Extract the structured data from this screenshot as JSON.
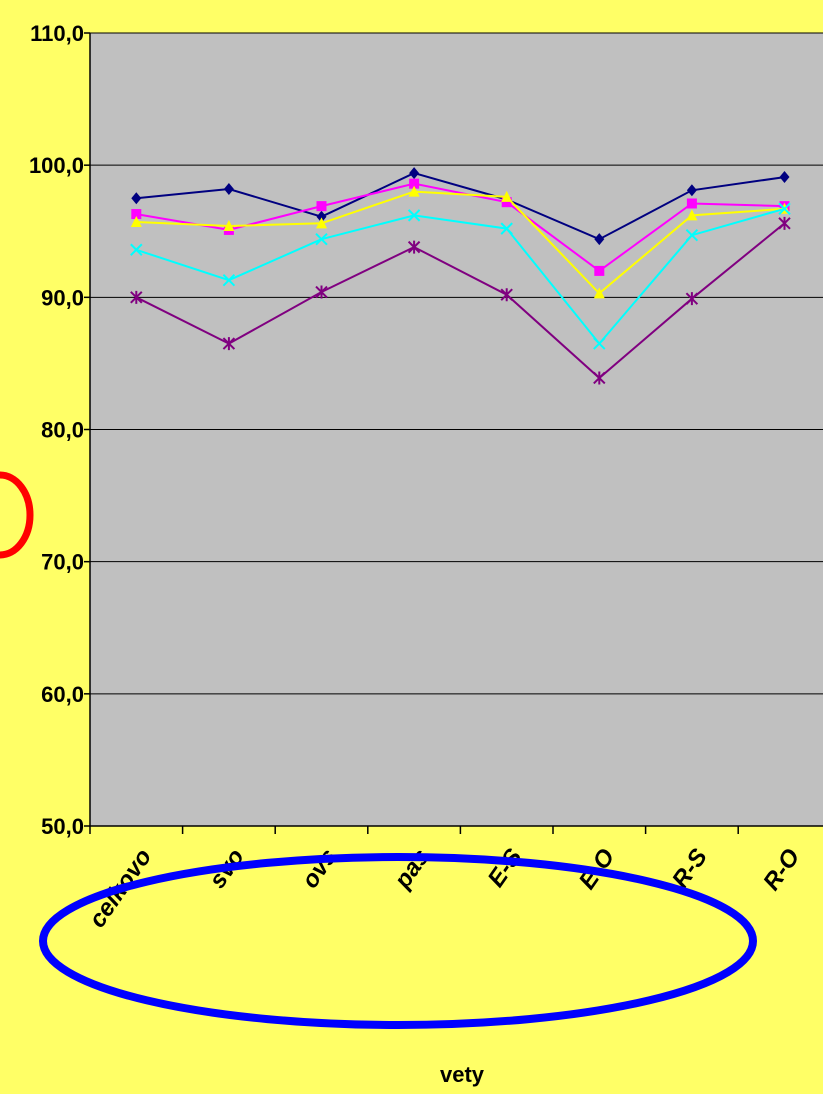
{
  "chart_data": {
    "type": "line",
    "categories": [
      "celkovo",
      "svo",
      "ovs",
      "pas",
      "E-S",
      "E-O",
      "R-S",
      "R-O"
    ],
    "xlabel": "vety",
    "ylabel": "",
    "ylim": [
      50,
      110
    ],
    "yticks": [
      "50,0",
      "60,0",
      "70,0",
      "80,0",
      "90,0",
      "100,0",
      "110,0"
    ],
    "grid": true,
    "legend": "none",
    "plot_background": "#c0c0c0",
    "page_background": "#ffff66",
    "series": [
      {
        "values": [
          97.5,
          98.2,
          96.1,
          99.4,
          97.4,
          94.4,
          98.1,
          99.1
        ],
        "color": "#000080",
        "marker": "diamond"
      },
      {
        "values": [
          96.3,
          95.1,
          96.9,
          98.6,
          97.2,
          92.0,
          97.1,
          96.9
        ],
        "color": "#ff00ff",
        "marker": "square"
      },
      {
        "values": [
          95.7,
          95.4,
          95.6,
          98.0,
          97.6,
          90.3,
          96.2,
          96.7
        ],
        "color": "#ffff00",
        "marker": "triangle"
      },
      {
        "values": [
          93.6,
          91.3,
          94.4,
          96.2,
          95.2,
          86.5,
          94.7,
          96.7
        ],
        "color": "#00ffff",
        "marker": "x"
      },
      {
        "values": [
          90.0,
          86.5,
          90.4,
          93.8,
          90.2,
          83.9,
          89.9,
          95.6
        ],
        "color": "#800080",
        "marker": "star"
      }
    ],
    "annotations": [
      {
        "shape": "ellipse",
        "color": "#0000ff",
        "around": "category-labels"
      },
      {
        "shape": "partial-circle",
        "color": "#ff0000",
        "position": "left-edge"
      }
    ]
  }
}
